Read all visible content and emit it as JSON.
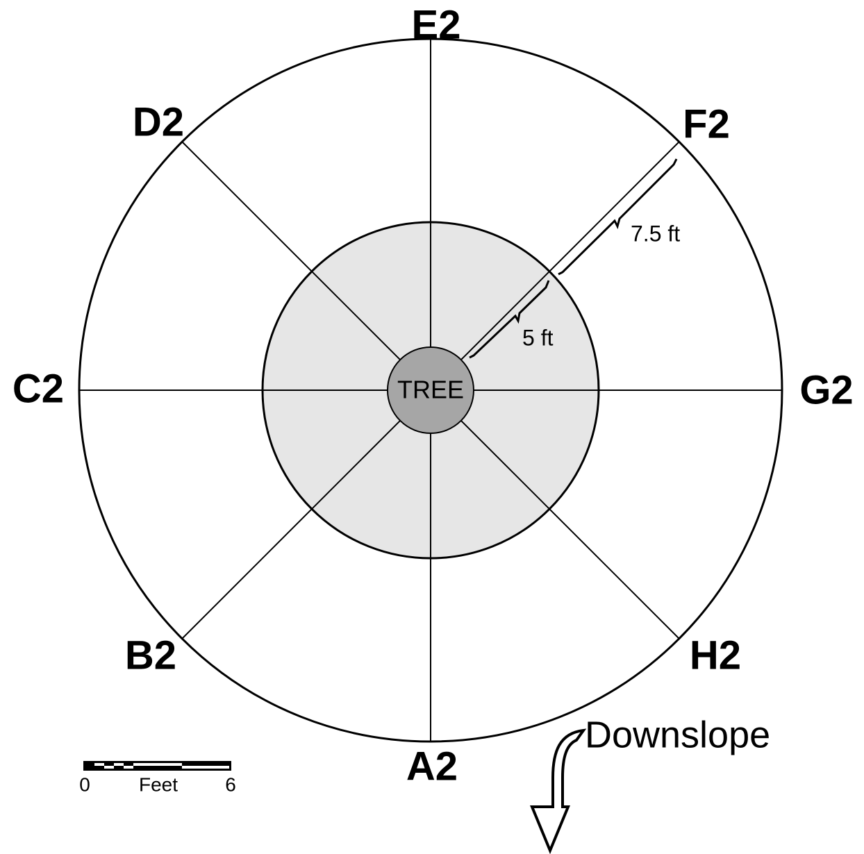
{
  "directions": {
    "north": "E2",
    "northeast": "F2",
    "east": "G2",
    "southeast": "H2",
    "south": "A2",
    "southwest": "B2",
    "west": "C2",
    "northwest": "D2"
  },
  "center_label": "TREE",
  "measurements": {
    "outer": "7.5 ft",
    "inner": "5 ft"
  },
  "slope_label": "Downslope",
  "scale_bar": {
    "start": "0",
    "unit": "Feet",
    "end": "6"
  }
}
